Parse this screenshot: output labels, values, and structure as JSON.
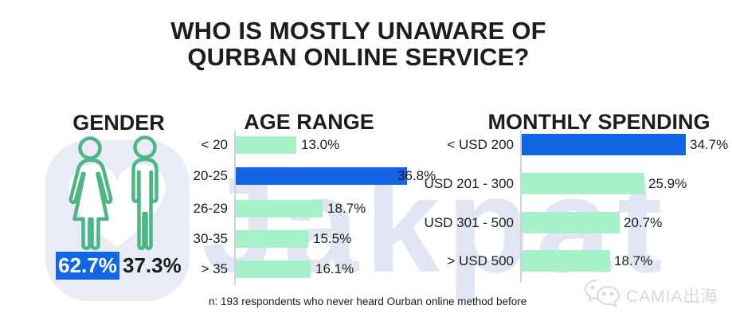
{
  "title": {
    "text": "WHO IS MOSTLY UNAWARE OF\nQURBAN ONLINE SERVICE?"
  },
  "note": {
    "text": "n: 193 respondents who never heard Ourban online method before"
  },
  "watermarks": {
    "jakpat_text": "Jakpat",
    "camia_text": "CAMIA出海"
  },
  "colors": {
    "highlight_blue": "#1266e3",
    "bar_mint": "#a5f2c8",
    "icon_green": "#4db586",
    "watermark_lavender": "#e2e5f3",
    "watermark_lavender_light": "#e9ebf7",
    "text_dark": "#1d1d1f"
  },
  "chart_data": [
    {
      "id": "gender",
      "type": "pictogram",
      "title": "GENDER",
      "categories": [
        "Female",
        "Male"
      ],
      "values": [
        62.7,
        37.3
      ],
      "value_labels": [
        "62.7%",
        "37.3%"
      ],
      "highlight_index": 0,
      "unit": "%"
    },
    {
      "id": "age_range",
      "type": "bar",
      "orientation": "horizontal",
      "title": "AGE RANGE",
      "categories": [
        "< 20",
        "20-25",
        "26-29",
        "30-35",
        "> 35"
      ],
      "values": [
        13.0,
        36.8,
        18.7,
        15.5,
        16.1
      ],
      "value_labels": [
        "13.0%",
        "36.8%",
        "18.7%",
        "15.5%",
        "16.1%"
      ],
      "highlight_index": 1,
      "xlim": [
        0,
        40
      ],
      "grid": false,
      "legend": false,
      "unit": "%"
    },
    {
      "id": "monthly_spending",
      "type": "bar",
      "orientation": "horizontal",
      "title": "MONTHLY SPENDING",
      "categories": [
        "< USD 200",
        "USD 201 - 300",
        "USD 301 - 500",
        "> USD 500"
      ],
      "values": [
        34.7,
        25.9,
        20.7,
        18.7
      ],
      "value_labels": [
        "34.7%",
        "25.9%",
        "20.7%",
        "18.7%"
      ],
      "highlight_index": 0,
      "xlim": [
        0,
        40
      ],
      "grid": false,
      "legend": false,
      "unit": "%"
    }
  ]
}
